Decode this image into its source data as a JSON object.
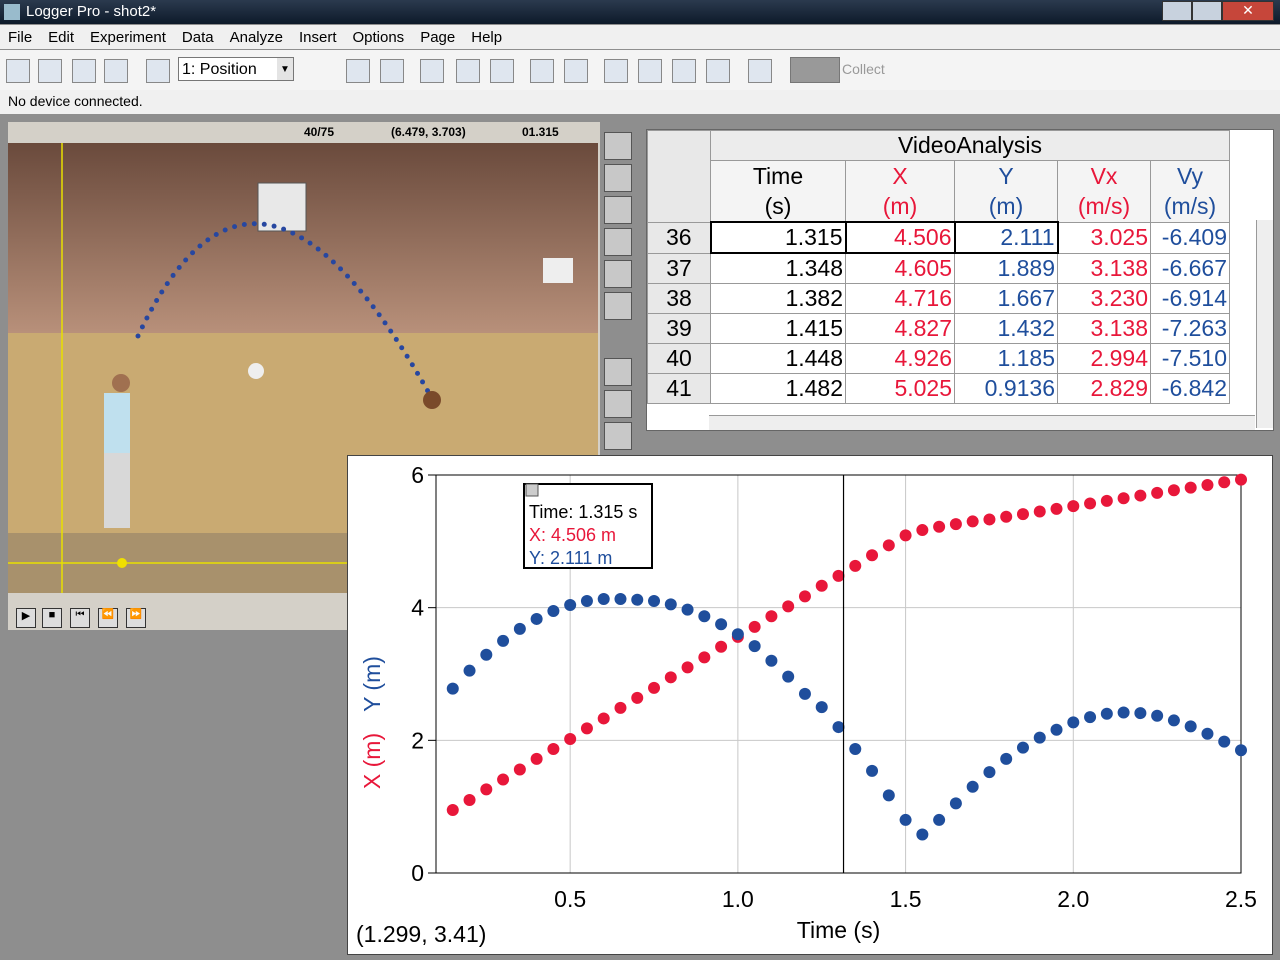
{
  "window": {
    "title": "Logger Pro - shot2*"
  },
  "menu": [
    "File",
    "Edit",
    "Experiment",
    "Data",
    "Analyze",
    "Insert",
    "Options",
    "Page",
    "Help"
  ],
  "toolbar": {
    "sensor_select": "1: Position",
    "collect": "Collect"
  },
  "status": "No device connected.",
  "video": {
    "frame": "40/75",
    "coords": "(6.479, 3.703)",
    "time": "01.315"
  },
  "table": {
    "title": "VideoAnalysis",
    "columns": [
      {
        "name": "Time",
        "unit": "(s)",
        "color": "#000000"
      },
      {
        "name": "X",
        "unit": "(m)",
        "color": "#e8173a"
      },
      {
        "name": "Y",
        "unit": "(m)",
        "color": "#1f4e9c"
      },
      {
        "name": "Vx",
        "unit": "(m/s)",
        "color": "#e8173a"
      },
      {
        "name": "Vy",
        "unit": "(m/s)",
        "color": "#1f4e9c"
      }
    ],
    "rows": [
      [
        "36",
        "1.315",
        "4.506",
        "2.111",
        "3.025",
        "-6.409"
      ],
      [
        "37",
        "1.348",
        "4.605",
        "1.889",
        "3.138",
        "-6.667"
      ],
      [
        "38",
        "1.382",
        "4.716",
        "1.667",
        "3.230",
        "-6.914"
      ],
      [
        "39",
        "1.415",
        "4.827",
        "1.432",
        "3.138",
        "-7.263"
      ],
      [
        "40",
        "1.448",
        "4.926",
        "1.185",
        "2.994",
        "-7.510"
      ],
      [
        "41",
        "1.482",
        "5.025",
        "0.9136",
        "2.829",
        "-6.842"
      ]
    ]
  },
  "chart_data": {
    "type": "scatter",
    "xlabel": "Time (s)",
    "x": [
      0.15,
      0.2,
      0.25,
      0.3,
      0.35,
      0.4,
      0.45,
      0.5,
      0.55,
      0.6,
      0.65,
      0.7,
      0.75,
      0.8,
      0.85,
      0.9,
      0.95,
      1.0,
      1.05,
      1.1,
      1.15,
      1.2,
      1.25,
      1.3,
      1.35,
      1.4,
      1.45,
      1.5,
      1.55,
      1.6,
      1.65,
      1.7,
      1.75,
      1.8,
      1.85,
      1.9,
      1.95,
      2.0,
      2.05,
      2.1,
      2.15,
      2.2,
      2.25,
      2.3,
      2.35,
      2.4,
      2.45,
      2.5
    ],
    "series": [
      {
        "name": "X (m)",
        "color": "#e8173a",
        "values": [
          0.95,
          1.1,
          1.26,
          1.41,
          1.56,
          1.72,
          1.87,
          2.02,
          2.18,
          2.33,
          2.49,
          2.64,
          2.79,
          2.95,
          3.1,
          3.25,
          3.41,
          3.56,
          3.71,
          3.87,
          4.02,
          4.17,
          4.33,
          4.48,
          4.63,
          4.79,
          4.94,
          5.09,
          5.17,
          5.22,
          5.26,
          5.3,
          5.33,
          5.37,
          5.41,
          5.45,
          5.49,
          5.53,
          5.57,
          5.61,
          5.65,
          5.69,
          5.73,
          5.77,
          5.81,
          5.85,
          5.89,
          5.93
        ]
      },
      {
        "name": "Y (m)",
        "color": "#1f4e9c",
        "values": [
          2.78,
          3.05,
          3.29,
          3.5,
          3.68,
          3.83,
          3.95,
          4.04,
          4.1,
          4.13,
          4.13,
          4.12,
          4.1,
          4.05,
          3.97,
          3.87,
          3.75,
          3.6,
          3.42,
          3.2,
          2.96,
          2.7,
          2.5,
          2.2,
          1.87,
          1.54,
          1.17,
          0.8,
          0.58,
          0.8,
          1.05,
          1.3,
          1.52,
          1.72,
          1.89,
          2.04,
          2.16,
          2.27,
          2.35,
          2.4,
          2.42,
          2.41,
          2.37,
          2.3,
          2.21,
          2.1,
          1.98,
          1.85
        ]
      }
    ],
    "xlim": [
      0.1,
      2.5
    ],
    "xticks": [
      0.5,
      {
        "value": 1,
        "label": "1.0"
      },
      1.5,
      {
        "value": 2,
        "label": "2.0"
      },
      2.5
    ],
    "ylim": [
      0,
      6
    ],
    "yticks": [
      0,
      2,
      4,
      6
    ],
    "grid": true,
    "cursor_x": 1.315,
    "cursor_readout": "(1.299, 3.41)",
    "tooltip": [
      "Time: 1.315 s",
      "X: 4.506 m",
      "Y: 2.111 m"
    ]
  }
}
